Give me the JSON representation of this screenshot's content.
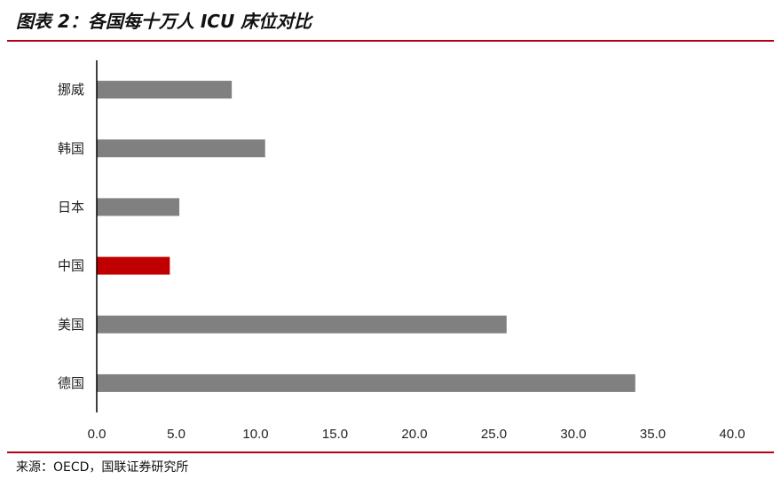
{
  "header": {
    "title": "图表 2：各国每十万人 ICU 床位对比"
  },
  "chart_data": {
    "type": "bar",
    "orientation": "horizontal",
    "title": "",
    "xlabel": "",
    "ylabel": "",
    "categories": [
      "挪威",
      "韩国",
      "日本",
      "中国",
      "美国",
      "德国"
    ],
    "values": [
      8.5,
      10.6,
      5.2,
      4.6,
      25.8,
      33.9
    ],
    "colors": [
      "#808080",
      "#808080",
      "#808080",
      "#c00000",
      "#808080",
      "#808080"
    ],
    "xlim": [
      0,
      40
    ],
    "xticks": [
      "0.0",
      "5.0",
      "10.0",
      "15.0",
      "20.0",
      "25.0",
      "30.0",
      "35.0",
      "40.0"
    ],
    "grid": false,
    "legend": "none"
  },
  "footer": {
    "source": "来源：OECD，国联证券研究所"
  }
}
